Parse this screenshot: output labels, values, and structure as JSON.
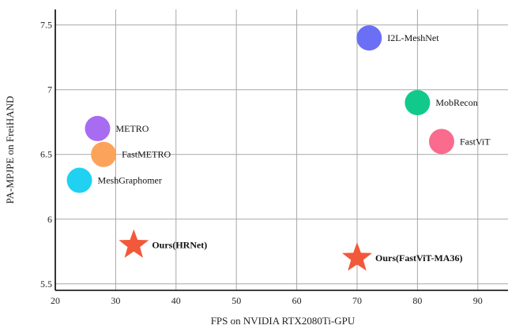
{
  "chart_data": {
    "type": "scatter",
    "title": "",
    "xlabel": "FPS on NVIDIA RTX2080Ti-GPU",
    "ylabel": "PA-MPJPE on FreiHAND",
    "xlim": [
      20,
      95
    ],
    "ylim": [
      5.45,
      7.62
    ],
    "xticks": [
      20,
      30,
      40,
      50,
      60,
      70,
      80,
      90
    ],
    "yticks": [
      5.5,
      6,
      6.5,
      7,
      7.5
    ],
    "grid": true,
    "points": [
      {
        "label": "I2L-MeshNet",
        "x": 72,
        "y": 7.4,
        "color": "#6b6ff5",
        "marker": "circle",
        "bold": false
      },
      {
        "label": "MobRecon",
        "x": 80,
        "y": 6.9,
        "color": "#12c98c",
        "marker": "circle",
        "bold": false
      },
      {
        "label": "FastViT",
        "x": 84,
        "y": 6.6,
        "color": "#fa6b8e",
        "marker": "circle",
        "bold": false
      },
      {
        "label": "METRO",
        "x": 27,
        "y": 6.7,
        "color": "#a86cf2",
        "marker": "circle",
        "bold": false
      },
      {
        "label": "FastMETRO",
        "x": 28,
        "y": 6.5,
        "color": "#fca35b",
        "marker": "circle",
        "bold": false
      },
      {
        "label": "MeshGraphomer",
        "x": 24,
        "y": 6.3,
        "color": "#21d1f2",
        "marker": "circle",
        "bold": false
      },
      {
        "label": "Ours(HRNet)",
        "x": 33,
        "y": 5.8,
        "color": "#f2583a",
        "marker": "star",
        "bold": true
      },
      {
        "label": "Ours(FastViT-MA36)",
        "x": 70,
        "y": 5.7,
        "color": "#f2583a",
        "marker": "star",
        "bold": true
      }
    ]
  }
}
